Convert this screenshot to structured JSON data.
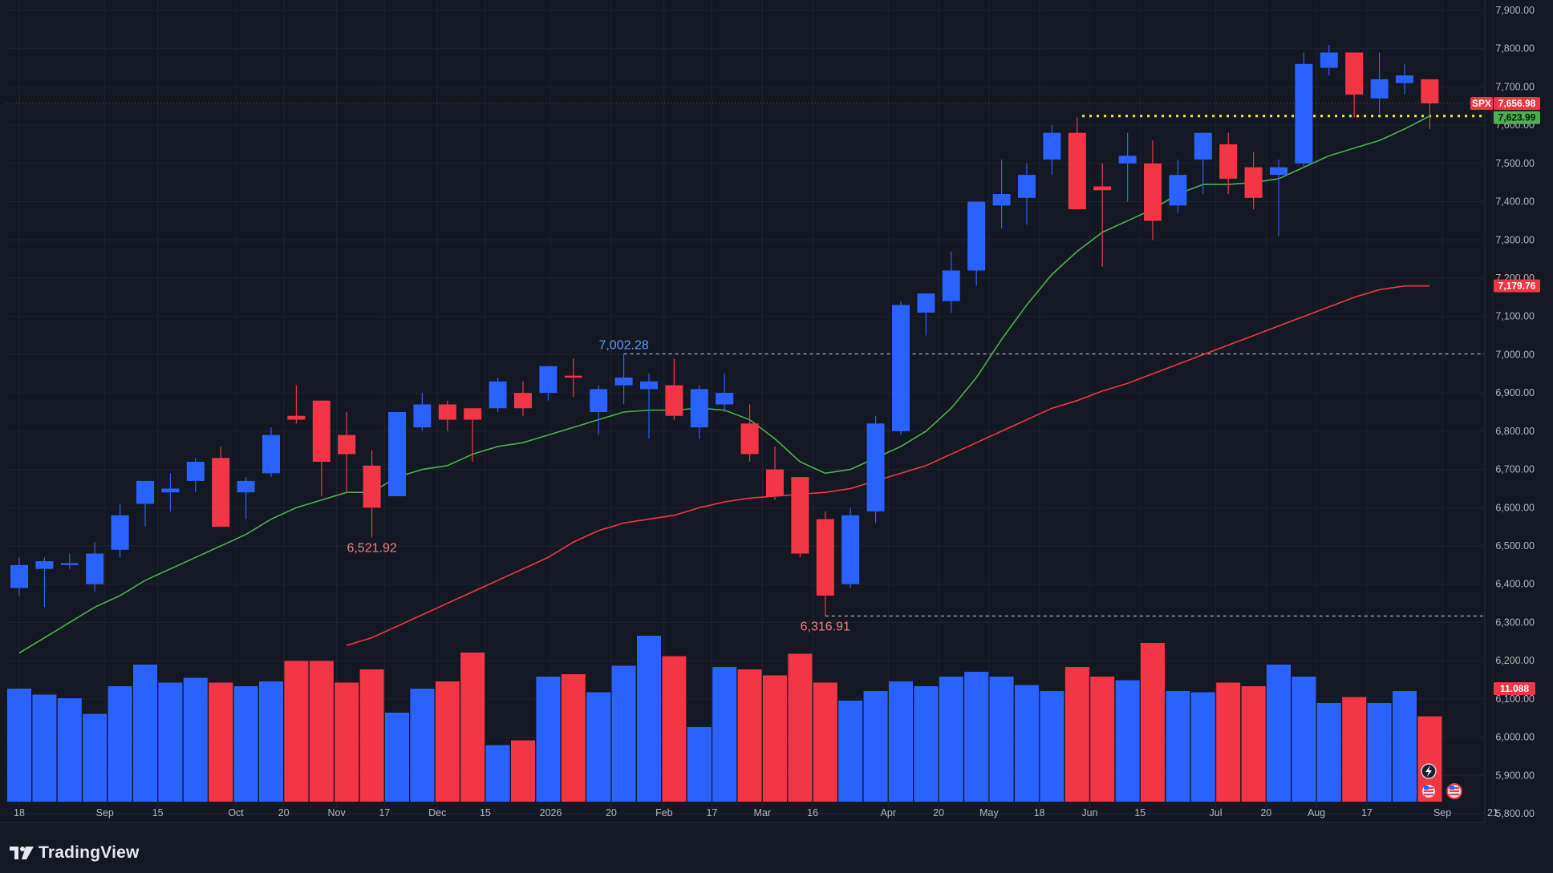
{
  "footer": {
    "brand": "TradingView"
  },
  "chart_data": {
    "type": "candlestick",
    "symbol": "SPX",
    "timeframe": "weekly",
    "ylim": [
      5700,
      7950
    ],
    "price_ticks": [
      5800,
      5900,
      6000,
      6100,
      6200,
      6300,
      6400,
      6500,
      6600,
      6700,
      6800,
      6900,
      7000,
      7100,
      7200,
      7300,
      7400,
      7500,
      7600,
      7700,
      7800,
      7900
    ],
    "x_ticks": [
      {
        "i": 0,
        "label": "18"
      },
      {
        "i": 3.4,
        "label": "Sep"
      },
      {
        "i": 5.5,
        "label": "15"
      },
      {
        "i": 8.6,
        "label": "Oct"
      },
      {
        "i": 10.5,
        "label": "20"
      },
      {
        "i": 12.6,
        "label": "Nov"
      },
      {
        "i": 14.5,
        "label": "17"
      },
      {
        "i": 16.6,
        "label": "Dec"
      },
      {
        "i": 18.5,
        "label": "15"
      },
      {
        "i": 21.1,
        "label": "2026"
      },
      {
        "i": 23.5,
        "label": "20"
      },
      {
        "i": 25.6,
        "label": "Feb"
      },
      {
        "i": 27.5,
        "label": "17"
      },
      {
        "i": 29.5,
        "label": "Mar"
      },
      {
        "i": 31.5,
        "label": "16"
      },
      {
        "i": 34.5,
        "label": "Apr"
      },
      {
        "i": 36.5,
        "label": "20"
      },
      {
        "i": 38.5,
        "label": "May"
      },
      {
        "i": 40.5,
        "label": "18"
      },
      {
        "i": 42.5,
        "label": "Jun"
      },
      {
        "i": 44.5,
        "label": "15"
      },
      {
        "i": 47.5,
        "label": "Jul"
      },
      {
        "i": 49.5,
        "label": "20"
      },
      {
        "i": 51.5,
        "label": "Aug"
      },
      {
        "i": 53.5,
        "label": "17"
      },
      {
        "i": 56.5,
        "label": "Sep"
      },
      {
        "i": 58.5,
        "label": "21"
      }
    ],
    "candles": [
      {
        "o": 6390,
        "h": 6470,
        "l": 6370,
        "c": 6450
      },
      {
        "o": 6440,
        "h": 6470,
        "l": 6340,
        "c": 6460
      },
      {
        "o": 6450,
        "h": 6480,
        "l": 6440,
        "c": 6455
      },
      {
        "o": 6400,
        "h": 6510,
        "l": 6380,
        "c": 6480
      },
      {
        "o": 6490,
        "h": 6610,
        "l": 6470,
        "c": 6580
      },
      {
        "o": 6610,
        "h": 6670,
        "l": 6550,
        "c": 6670
      },
      {
        "o": 6640,
        "h": 6690,
        "l": 6590,
        "c": 6650
      },
      {
        "o": 6670,
        "h": 6730,
        "l": 6640,
        "c": 6720
      },
      {
        "o": 6730,
        "h": 6760,
        "l": 6550,
        "c": 6550
      },
      {
        "o": 6640,
        "h": 6680,
        "l": 6570,
        "c": 6670
      },
      {
        "o": 6690,
        "h": 6810,
        "l": 6680,
        "c": 6790
      },
      {
        "o": 6840,
        "h": 6920,
        "l": 6820,
        "c": 6830
      },
      {
        "o": 6880,
        "h": 6880,
        "l": 6630,
        "c": 6720
      },
      {
        "o": 6790,
        "h": 6850,
        "l": 6640,
        "c": 6740
      },
      {
        "o": 6710,
        "h": 6750,
        "l": 6521.92,
        "c": 6600
      },
      {
        "o": 6630,
        "h": 6850,
        "l": 6630,
        "c": 6850
      },
      {
        "o": 6810,
        "h": 6900,
        "l": 6800,
        "c": 6870
      },
      {
        "o": 6870,
        "h": 6880,
        "l": 6800,
        "c": 6830
      },
      {
        "o": 6860,
        "h": 6860,
        "l": 6720,
        "c": 6830
      },
      {
        "o": 6860,
        "h": 6940,
        "l": 6850,
        "c": 6930
      },
      {
        "o": 6900,
        "h": 6930,
        "l": 6840,
        "c": 6860
      },
      {
        "o": 6900,
        "h": 6970,
        "l": 6880,
        "c": 6970
      },
      {
        "o": 6945,
        "h": 6990,
        "l": 6890,
        "c": 6940
      },
      {
        "o": 6850,
        "h": 6920,
        "l": 6790,
        "c": 6910
      },
      {
        "o": 6920,
        "h": 7002.28,
        "l": 6870,
        "c": 6940
      },
      {
        "o": 6910,
        "h": 6950,
        "l": 6780,
        "c": 6930
      },
      {
        "o": 6920,
        "h": 6990,
        "l": 6830,
        "c": 6840
      },
      {
        "o": 6810,
        "h": 6920,
        "l": 6780,
        "c": 6910
      },
      {
        "o": 6870,
        "h": 6950,
        "l": 6850,
        "c": 6900
      },
      {
        "o": 6820,
        "h": 6870,
        "l": 6720,
        "c": 6740
      },
      {
        "o": 6700,
        "h": 6760,
        "l": 6620,
        "c": 6630
      },
      {
        "o": 6680,
        "h": 6680,
        "l": 6470,
        "c": 6480
      },
      {
        "o": 6570,
        "h": 6590,
        "l": 6316.91,
        "c": 6370
      },
      {
        "o": 6400,
        "h": 6600,
        "l": 6390,
        "c": 6580
      },
      {
        "o": 6590,
        "h": 6840,
        "l": 6560,
        "c": 6820
      },
      {
        "o": 6800,
        "h": 7140,
        "l": 6790,
        "c": 7130
      },
      {
        "o": 7110,
        "h": 7160,
        "l": 7050,
        "c": 7160
      },
      {
        "o": 7140,
        "h": 7270,
        "l": 7110,
        "c": 7220
      },
      {
        "o": 7220,
        "h": 7400,
        "l": 7180,
        "c": 7400
      },
      {
        "o": 7390,
        "h": 7510,
        "l": 7330,
        "c": 7420
      },
      {
        "o": 7410,
        "h": 7500,
        "l": 7340,
        "c": 7470
      },
      {
        "o": 7510,
        "h": 7600,
        "l": 7470,
        "c": 7580
      },
      {
        "o": 7580,
        "h": 7620,
        "l": 7380,
        "c": 7380
      },
      {
        "o": 7440,
        "h": 7500,
        "l": 7230,
        "c": 7430
      },
      {
        "o": 7500,
        "h": 7580,
        "l": 7400,
        "c": 7520
      },
      {
        "o": 7500,
        "h": 7560,
        "l": 7300,
        "c": 7350
      },
      {
        "o": 7390,
        "h": 7510,
        "l": 7370,
        "c": 7470
      },
      {
        "o": 7510,
        "h": 7580,
        "l": 7420,
        "c": 7580
      },
      {
        "o": 7550,
        "h": 7580,
        "l": 7420,
        "c": 7460
      },
      {
        "o": 7490,
        "h": 7530,
        "l": 7380,
        "c": 7410
      },
      {
        "o": 7470,
        "h": 7510,
        "l": 7310,
        "c": 7490
      },
      {
        "o": 7500,
        "h": 7790,
        "l": 7490,
        "c": 7760
      },
      {
        "o": 7750,
        "h": 7810,
        "l": 7730,
        "c": 7790
      },
      {
        "o": 7790,
        "h": 7790,
        "l": 7620,
        "c": 7680
      },
      {
        "o": 7670,
        "h": 7790,
        "l": 7630,
        "c": 7720
      },
      {
        "o": 7710,
        "h": 7760,
        "l": 7680,
        "c": 7730
      },
      {
        "o": 7720,
        "h": 7720,
        "l": 7590,
        "c": 7656.98
      }
    ],
    "volume": [
      0.94,
      0.89,
      0.86,
      0.73,
      0.96,
      1.14,
      0.99,
      1.03,
      0.99,
      0.96,
      1.0,
      1.17,
      1.17,
      0.99,
      1.1,
      0.74,
      0.94,
      1.0,
      1.24,
      0.47,
      0.51,
      1.04,
      1.06,
      0.91,
      1.13,
      1.38,
      1.21,
      0.62,
      1.12,
      1.1,
      1.05,
      1.23,
      0.99,
      0.84,
      0.92,
      1.0,
      0.96,
      1.04,
      1.08,
      1.04,
      0.97,
      0.92,
      1.12,
      1.04,
      1.01,
      1.32,
      0.92,
      0.91,
      0.99,
      0.96,
      1.14,
      1.04,
      0.82,
      0.87,
      0.82,
      0.92,
      0.71
    ],
    "volume_last_label": "11.088",
    "ma_fast": [
      6220,
      6260,
      6300,
      6340,
      6370,
      6410,
      6440,
      6470,
      6500,
      6530,
      6570,
      6600,
      6620,
      6640,
      6640,
      6680,
      6700,
      6710,
      6740,
      6760,
      6770,
      6790,
      6810,
      6830,
      6850,
      6855,
      6855,
      6860,
      6855,
      6830,
      6780,
      6720,
      6690,
      6700,
      6730,
      6760,
      6800,
      6860,
      6940,
      7040,
      7130,
      7210,
      7270,
      7320,
      7350,
      7380,
      7420,
      7445,
      7445,
      7450,
      7460,
      7490,
      7520,
      7540,
      7560,
      7590,
      7623.99
    ],
    "ma_slow": [
      null,
      null,
      null,
      null,
      null,
      null,
      null,
      null,
      null,
      null,
      null,
      null,
      null,
      6240,
      6260,
      6290,
      6320,
      6350,
      6380,
      6410,
      6440,
      6470,
      6510,
      6540,
      6560,
      6570,
      6580,
      6600,
      6615,
      6625,
      6630,
      6635,
      6640,
      6650,
      6670,
      6690,
      6710,
      6740,
      6770,
      6800,
      6830,
      6860,
      6880,
      6905,
      6925,
      6950,
      6975,
      7000,
      7025,
      7050,
      7075,
      7100,
      7125,
      7150,
      7170,
      7179.76,
      7179.76
    ],
    "annotations": [
      {
        "label": "7,002.28",
        "i": 24,
        "price": 7002.28
      },
      {
        "label": "6,521.92",
        "i": 14,
        "price": 6521.92
      },
      {
        "label": "6,316.91",
        "i": 32,
        "price": 6316.91
      }
    ],
    "price_labels": {
      "symbol": "SPX",
      "last": "7,656.98",
      "ma_fast": "7,623.99",
      "ma_slow": "7,179.76"
    },
    "colors": {
      "up": "#2962ff",
      "down": "#f23645",
      "ma_fast": "#4caf50",
      "ma_slow": "#f23645",
      "bg": "#141822",
      "dotted": "#ffeb3b"
    }
  }
}
